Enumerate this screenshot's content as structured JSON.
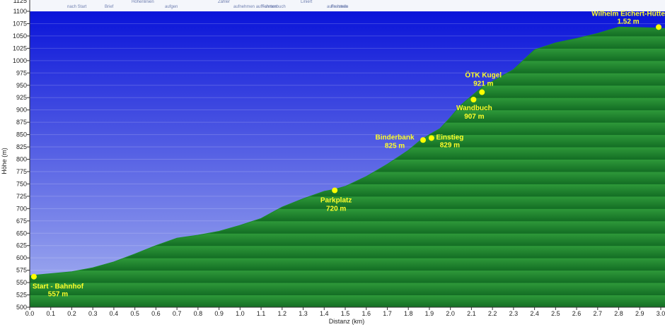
{
  "chart_data": {
    "type": "area",
    "xlabel": "Distanz  (km)",
    "ylabel": "Höhe (m)",
    "xlim": [
      0,
      3.0
    ],
    "ylim": [
      500,
      1100
    ],
    "x_ticks": [
      "0.0",
      "0.1",
      "0.2",
      "0.3",
      "0.4",
      "0.5",
      "0.6",
      "0.7",
      "0.8",
      "0.9",
      "1.0",
      "1.1",
      "1.2",
      "1.3",
      "1.4",
      "1.5",
      "1.6",
      "1.7",
      "1.8",
      "1.9",
      "2.0",
      "2.1",
      "2.2",
      "2.3",
      "2.4",
      "2.5",
      "2.6",
      "2.7",
      "2.8",
      "2.9",
      "3.0"
    ],
    "y_ticks": [
      "500",
      "525",
      "550",
      "575",
      "600",
      "625",
      "650",
      "675",
      "700",
      "725",
      "750",
      "775",
      "800",
      "825",
      "850",
      "875",
      "900",
      "925",
      "950",
      "975",
      "1000",
      "1025",
      "1050",
      "1075",
      "1100"
    ],
    "profile": {
      "x": [
        0.0,
        0.1,
        0.2,
        0.3,
        0.4,
        0.5,
        0.6,
        0.7,
        0.8,
        0.9,
        1.0,
        1.1,
        1.2,
        1.3,
        1.4,
        1.45,
        1.5,
        1.6,
        1.7,
        1.8,
        1.85,
        1.9,
        1.95,
        2.0,
        2.05,
        2.1,
        2.15,
        2.2,
        2.3,
        2.4,
        2.5,
        2.6,
        2.7,
        2.8,
        2.9,
        3.0
      ],
      "y": [
        564,
        568,
        572,
        580,
        592,
        608,
        625,
        640,
        646,
        654,
        666,
        680,
        703,
        720,
        735,
        739,
        745,
        765,
        790,
        818,
        836,
        850,
        862,
        885,
        910,
        928,
        946,
        958,
        982,
        1022,
        1036,
        1045,
        1055,
        1068,
        1067,
        1066
      ]
    },
    "waypoints": [
      {
        "name": "Start - Bahnhof",
        "value": "557 m",
        "x": 0.02,
        "y": 562
      },
      {
        "name": "Parkplatz",
        "value": "720 m",
        "x": 1.45,
        "y": 737
      },
      {
        "name": "Binderbank",
        "value": "825 m",
        "x": 1.87,
        "y": 839
      },
      {
        "name": "Einstieg",
        "value": "829 m",
        "x": 1.91,
        "y": 843
      },
      {
        "name": "Wandbuch",
        "value": "907 m",
        "x": 2.11,
        "y": 921
      },
      {
        "name": "ÖTK Kugel",
        "value": "921 m",
        "x": 2.15,
        "y": 936
      },
      {
        "name": "Wilhelm Eichert-Hütte",
        "value": "1.52 m",
        "x": 2.99,
        "y": 1068
      }
    ],
    "colors": {
      "sky_top": "#0a14d9",
      "sky_bottom": "#a8b4f0",
      "terrain_band_a": "#2f9a3a",
      "terrain_band_b": "#136d24",
      "marker": "#ffff00",
      "label": "#ffff2a"
    }
  },
  "top_strip": {
    "tick_label": "1125",
    "ui_words": [
      "nach Start",
      "Brief",
      "Höhenlinien",
      "aufgen",
      "Zähler",
      "aufnehmen aufnehmen",
      "Liniert",
      "aufnehmen",
      "Fahrtenbuch",
      "Freistelle"
    ]
  }
}
